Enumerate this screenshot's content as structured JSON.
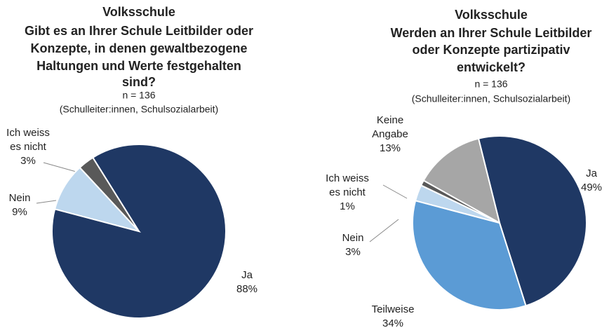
{
  "chart_data": [
    {
      "type": "pie",
      "title": [
        "Volksschule",
        "Gibt es an Ihrer Schule Leitbilder oder",
        "Konzepte, in denen gewaltbezogene",
        "Haltungen und Werte festgehalten",
        "sind?"
      ],
      "subtitle": [
        "n = 136",
        "(Schulleiter:innen, Schulsozialarbeit)"
      ],
      "categories": [
        "Ja",
        "Nein",
        "Ich weiss es nicht"
      ],
      "values": [
        88,
        9,
        3
      ],
      "value_labels": [
        "88%",
        "9%",
        "3%"
      ],
      "colors": [
        "#1f3864",
        "#bdd7ee",
        "#595959"
      ]
    },
    {
      "type": "pie",
      "title": [
        "Volksschule",
        "Werden an Ihrer Schule Leitbilder",
        "oder Konzepte partizipativ",
        "entwickelt?"
      ],
      "subtitle": [
        "n = 136",
        "(Schulleiter:innen, Schulsozialarbeit)"
      ],
      "categories": [
        "Ja",
        "Teilweise",
        "Nein",
        "Ich weiss es nicht",
        "Keine Angabe"
      ],
      "values": [
        49,
        34,
        3,
        1,
        13
      ],
      "value_labels": [
        "49%",
        "34%",
        "3%",
        "1%",
        "13%"
      ],
      "colors": [
        "#1f3864",
        "#5b9bd5",
        "#bdd7ee",
        "#595959",
        "#a6a6a6"
      ]
    }
  ]
}
